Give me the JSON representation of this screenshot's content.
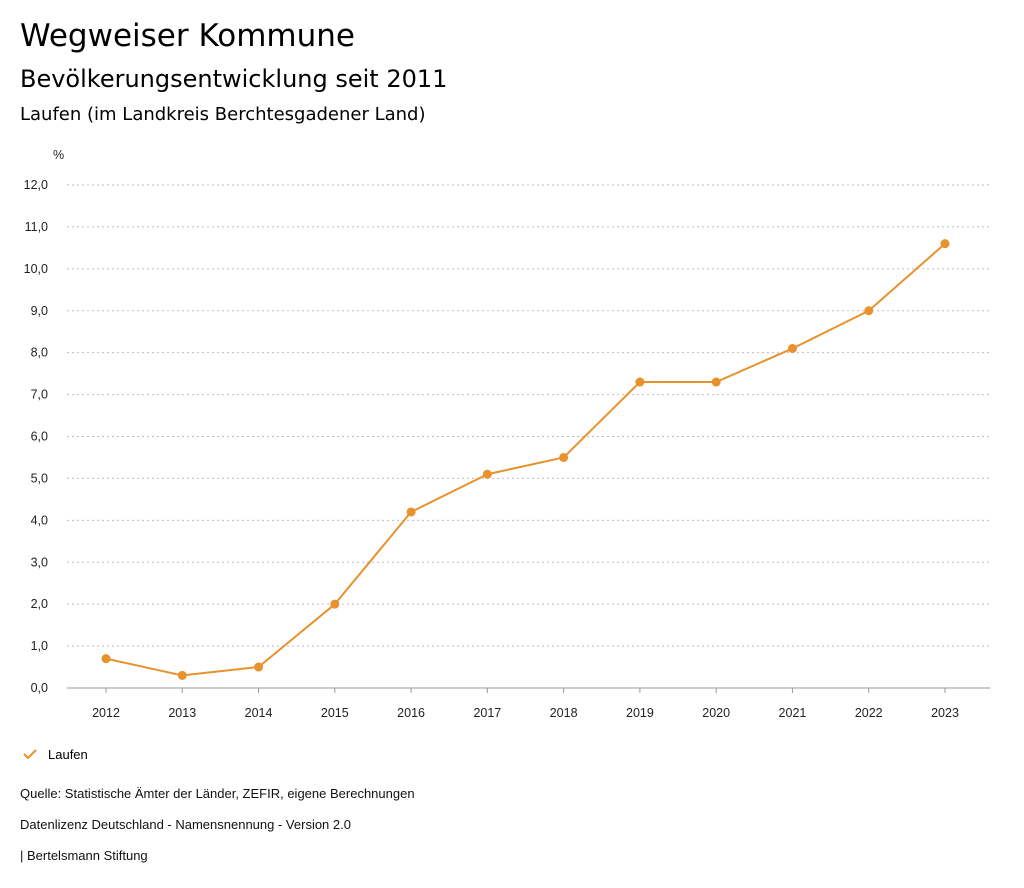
{
  "header": {
    "title": "Wegweiser Kommune",
    "subtitle": "Bevölkerungsentwicklung seit 2011",
    "region": "Laufen (im Landkreis Berchtesgadener Land)"
  },
  "chart_data": {
    "type": "line",
    "title": "Bevölkerungsentwicklung seit 2011",
    "ylabel": "%",
    "xlabel": "",
    "categories": [
      "2012",
      "2013",
      "2014",
      "2015",
      "2016",
      "2017",
      "2018",
      "2019",
      "2020",
      "2021",
      "2022",
      "2023"
    ],
    "series": [
      {
        "name": "Laufen",
        "color": "#E8912D",
        "values": [
          0.7,
          0.3,
          0.5,
          2.0,
          4.2,
          5.1,
          5.5,
          7.3,
          7.3,
          8.1,
          9.0,
          10.6
        ]
      }
    ],
    "ylim": [
      0,
      12
    ],
    "yticks": [
      "0,0",
      "1,0",
      "2,0",
      "3,0",
      "4,0",
      "5,0",
      "6,0",
      "7,0",
      "8,0",
      "9,0",
      "10,0",
      "11,0",
      "12,0"
    ],
    "grid": true,
    "legend_position": "bottom-left"
  },
  "legend": {
    "label": "Laufen",
    "icon": "check-icon"
  },
  "footer": {
    "source": "Quelle: Statistische Ämter der Länder, ZEFIR, eigene Berechnungen",
    "license": "Datenlizenz Deutschland - Namensnennung - Version 2.0",
    "publisher": "| Bertelsmann Stiftung"
  }
}
